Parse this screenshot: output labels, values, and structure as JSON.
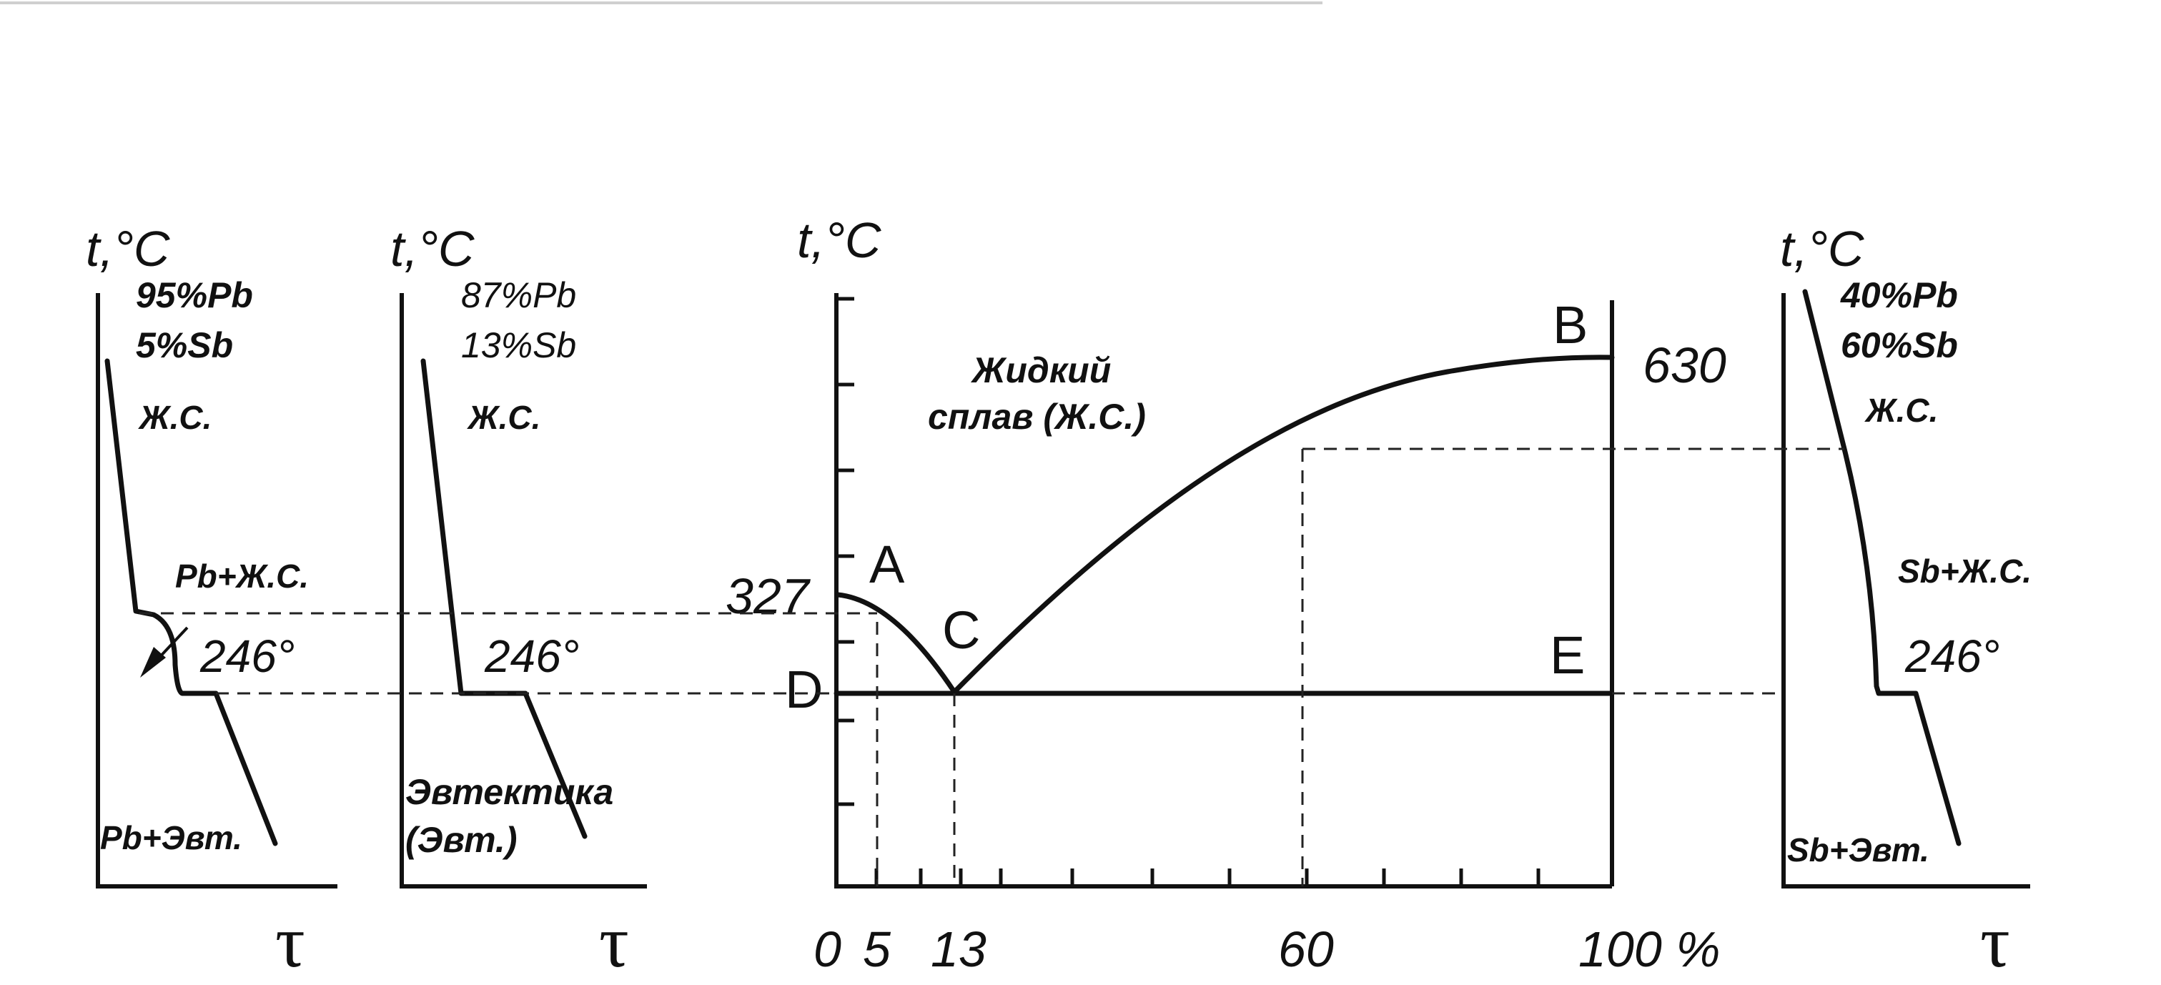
{
  "axis_t_label": "t,°C",
  "axis_tau_label": "τ",
  "arrest_temp_label": "246°",
  "panel1": {
    "comp_line1": "95%Pb",
    "comp_line2": "5%Sb",
    "region_liquid": "Ж.С.",
    "region_mid": "Pb+Ж.С.",
    "region_solid": "Pb+Эвт."
  },
  "panel2": {
    "comp_line1": "87%Pb",
    "comp_line2": "13%Sb",
    "region_liquid": "Ж.С.",
    "region_solid_line1": "Эвтектика",
    "region_solid_line2": "(Эвт.)"
  },
  "phase": {
    "liquid_line1": "Жидкий",
    "liquid_line2": "сплав (Ж.С.)",
    "temp_A": "327",
    "temp_B": "630",
    "point_A": "A",
    "point_B": "B",
    "point_C": "C",
    "point_D": "D",
    "point_E": "E",
    "x_ticks": [
      "0",
      "5",
      "13",
      "60",
      "100 %"
    ]
  },
  "panel3": {
    "comp_line1": "40%Pb",
    "comp_line2": "60%Sb",
    "region_liquid": "Ж.С.",
    "region_mid": "Sb+Ж.С.",
    "region_solid": "Sb+Эвт."
  }
}
